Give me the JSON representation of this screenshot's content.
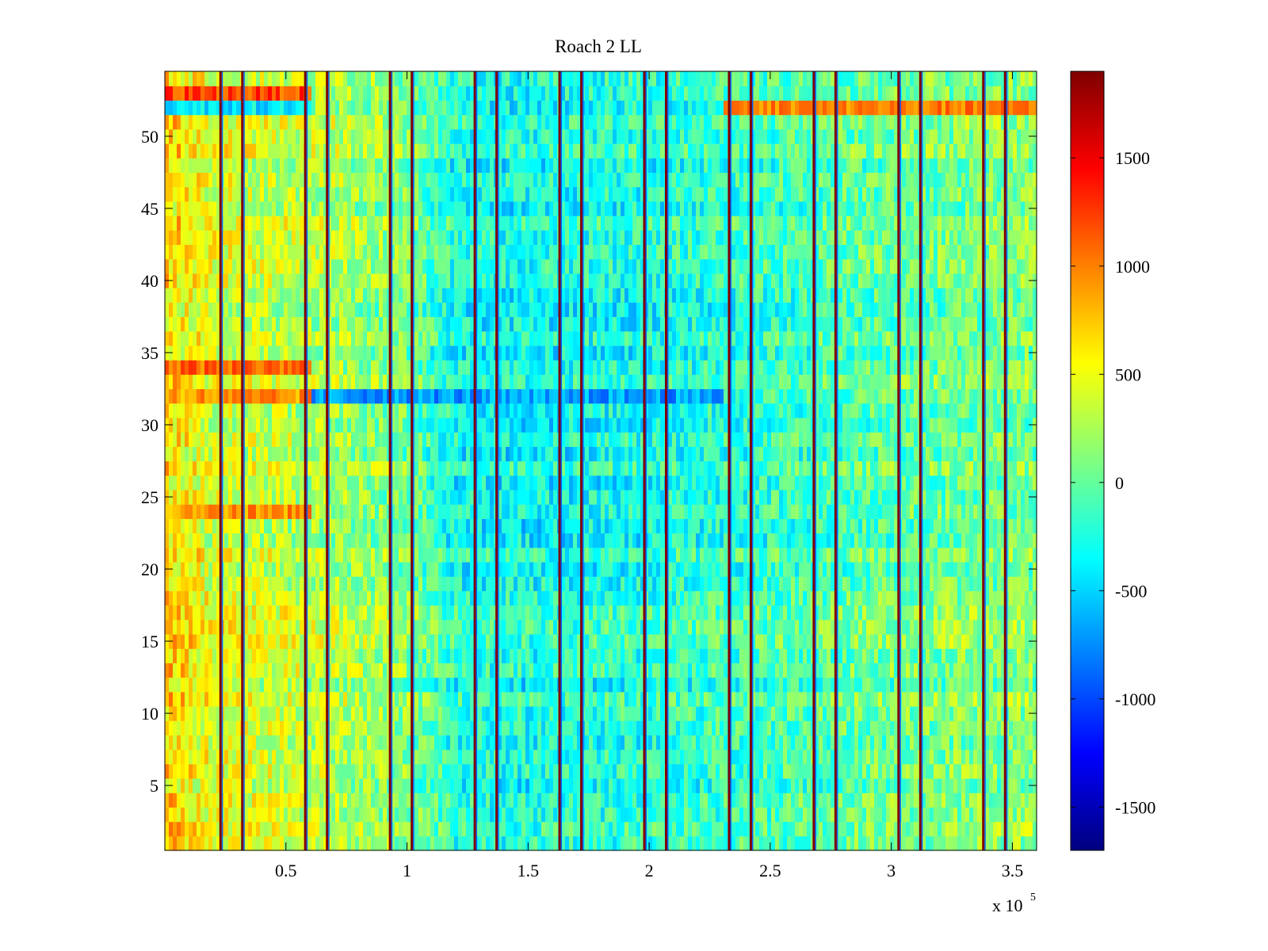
{
  "chart_data": {
    "type": "heatmap",
    "title": "Roach 2 LL",
    "xlabel": "",
    "ylabel": "",
    "x_range": [
      0,
      360000
    ],
    "y_range": [
      0.5,
      54.5
    ],
    "rows": 54,
    "x_exponent_label": "x 10",
    "x_exponent_power": "5",
    "x_ticks": [
      {
        "value": 50000,
        "label": "0.5"
      },
      {
        "value": 100000,
        "label": "1"
      },
      {
        "value": 150000,
        "label": "1.5"
      },
      {
        "value": 200000,
        "label": "2"
      },
      {
        "value": 250000,
        "label": "2.5"
      },
      {
        "value": 300000,
        "label": "3"
      },
      {
        "value": 350000,
        "label": "3.5"
      }
    ],
    "y_ticks": [
      {
        "value": 5,
        "label": "5"
      },
      {
        "value": 10,
        "label": "10"
      },
      {
        "value": 15,
        "label": "15"
      },
      {
        "value": 20,
        "label": "20"
      },
      {
        "value": 25,
        "label": "25"
      },
      {
        "value": 30,
        "label": "30"
      },
      {
        "value": 35,
        "label": "35"
      },
      {
        "value": 40,
        "label": "40"
      },
      {
        "value": 45,
        "label": "45"
      },
      {
        "value": 50,
        "label": "50"
      }
    ],
    "colorbar": {
      "colormap": "jet",
      "range": [
        -1700,
        1900
      ],
      "ticks": [
        {
          "value": 1500,
          "label": "1500"
        },
        {
          "value": 1000,
          "label": "1000"
        },
        {
          "value": 500,
          "label": "500"
        },
        {
          "value": 0,
          "label": "0"
        },
        {
          "value": -500,
          "label": "-500"
        },
        {
          "value": -1000,
          "label": "-1000"
        },
        {
          "value": -1500,
          "label": "-1500"
        }
      ]
    },
    "spike_columns_x": [
      23000,
      32000,
      58000,
      67000,
      93000,
      102000,
      128000,
      137000,
      163000,
      172000,
      198000,
      207000,
      233000,
      242000,
      268000,
      277000,
      303000,
      312000,
      338000,
      347000
    ],
    "value_profile": {
      "description_free_values": "mean value by x band",
      "band_x": [
        0,
        20000,
        60000,
        100000,
        120000,
        150000,
        200000,
        250000,
        300000,
        360000
      ],
      "band_mean": [
        700,
        450,
        320,
        120,
        -250,
        -280,
        -220,
        -120,
        30,
        120
      ]
    },
    "notable_rows": [
      {
        "row": 53,
        "left_mean": 1200
      },
      {
        "row": 52,
        "left_mean": -400,
        "right_mean": 1000
      },
      {
        "row": 32,
        "left_mean": 900,
        "mid_mean": -700
      },
      {
        "row": 34,
        "left_mean": 1100
      },
      {
        "row": 24,
        "left_mean": 900
      }
    ]
  }
}
